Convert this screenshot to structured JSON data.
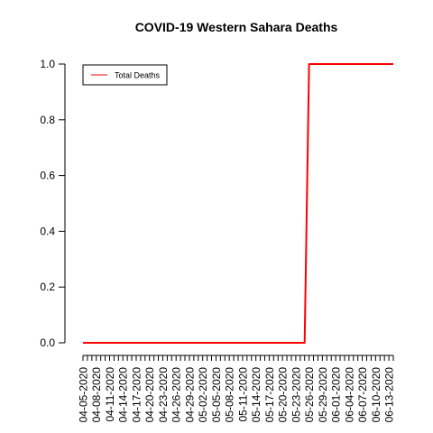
{
  "chart_data": {
    "type": "line",
    "title": "COVID-19 Western Sahara Deaths",
    "xlabel": "",
    "ylabel": "",
    "x": [
      "04-05-2020",
      "04-06-2020",
      "04-07-2020",
      "04-08-2020",
      "04-09-2020",
      "04-10-2020",
      "04-11-2020",
      "04-12-2020",
      "04-13-2020",
      "04-14-2020",
      "04-15-2020",
      "04-16-2020",
      "04-17-2020",
      "04-18-2020",
      "04-19-2020",
      "04-20-2020",
      "04-21-2020",
      "04-22-2020",
      "04-23-2020",
      "04-24-2020",
      "04-25-2020",
      "04-26-2020",
      "04-27-2020",
      "04-28-2020",
      "04-29-2020",
      "04-30-2020",
      "05-01-2020",
      "05-02-2020",
      "05-03-2020",
      "05-04-2020",
      "05-05-2020",
      "05-06-2020",
      "05-07-2020",
      "05-08-2020",
      "05-09-2020",
      "05-10-2020",
      "05-11-2020",
      "05-12-2020",
      "05-13-2020",
      "05-14-2020",
      "05-15-2020",
      "05-16-2020",
      "05-17-2020",
      "05-18-2020",
      "05-19-2020",
      "05-20-2020",
      "05-21-2020",
      "05-22-2020",
      "05-23-2020",
      "05-24-2020",
      "05-25-2020",
      "05-26-2020",
      "05-27-2020",
      "05-28-2020",
      "05-29-2020",
      "05-30-2020",
      "05-31-2020",
      "06-01-2020",
      "06-02-2020",
      "06-03-2020",
      "06-04-2020",
      "06-05-2020",
      "06-06-2020",
      "06-07-2020",
      "06-08-2020",
      "06-09-2020",
      "06-10-2020",
      "06-11-2020",
      "06-12-2020",
      "06-13-2020",
      "06-14-2020"
    ],
    "x_tick_labels": [
      "04-05-2020",
      "04-08-2020",
      "04-11-2020",
      "04-14-2020",
      "04-17-2020",
      "04-20-2020",
      "04-23-2020",
      "04-26-2020",
      "04-29-2020",
      "05-02-2020",
      "05-05-2020",
      "05-08-2020",
      "05-11-2020",
      "05-14-2020",
      "05-17-2020",
      "05-20-2020",
      "05-23-2020",
      "05-26-2020",
      "05-29-2020",
      "06-01-2020",
      "06-04-2020",
      "06-07-2020",
      "06-10-2020",
      "06-13-2020"
    ],
    "series": [
      {
        "name": "Total Deaths",
        "color": "#ff0000",
        "values": [
          0,
          0,
          0,
          0,
          0,
          0,
          0,
          0,
          0,
          0,
          0,
          0,
          0,
          0,
          0,
          0,
          0,
          0,
          0,
          0,
          0,
          0,
          0,
          0,
          0,
          0,
          0,
          0,
          0,
          0,
          0,
          0,
          0,
          0,
          0,
          0,
          0,
          0,
          0,
          0,
          0,
          0,
          0,
          0,
          0,
          0,
          0,
          0,
          0,
          0,
          0,
          1,
          1,
          1,
          1,
          1,
          1,
          1,
          1,
          1,
          1,
          1,
          1,
          1,
          1,
          1,
          1,
          1,
          1,
          1,
          1
        ]
      }
    ],
    "ylim": [
      0,
      1
    ],
    "y_ticks": [
      "0.0",
      "0.2",
      "0.4",
      "0.6",
      "0.8",
      "1.0"
    ],
    "grid": false,
    "legend_position": "top-left"
  }
}
